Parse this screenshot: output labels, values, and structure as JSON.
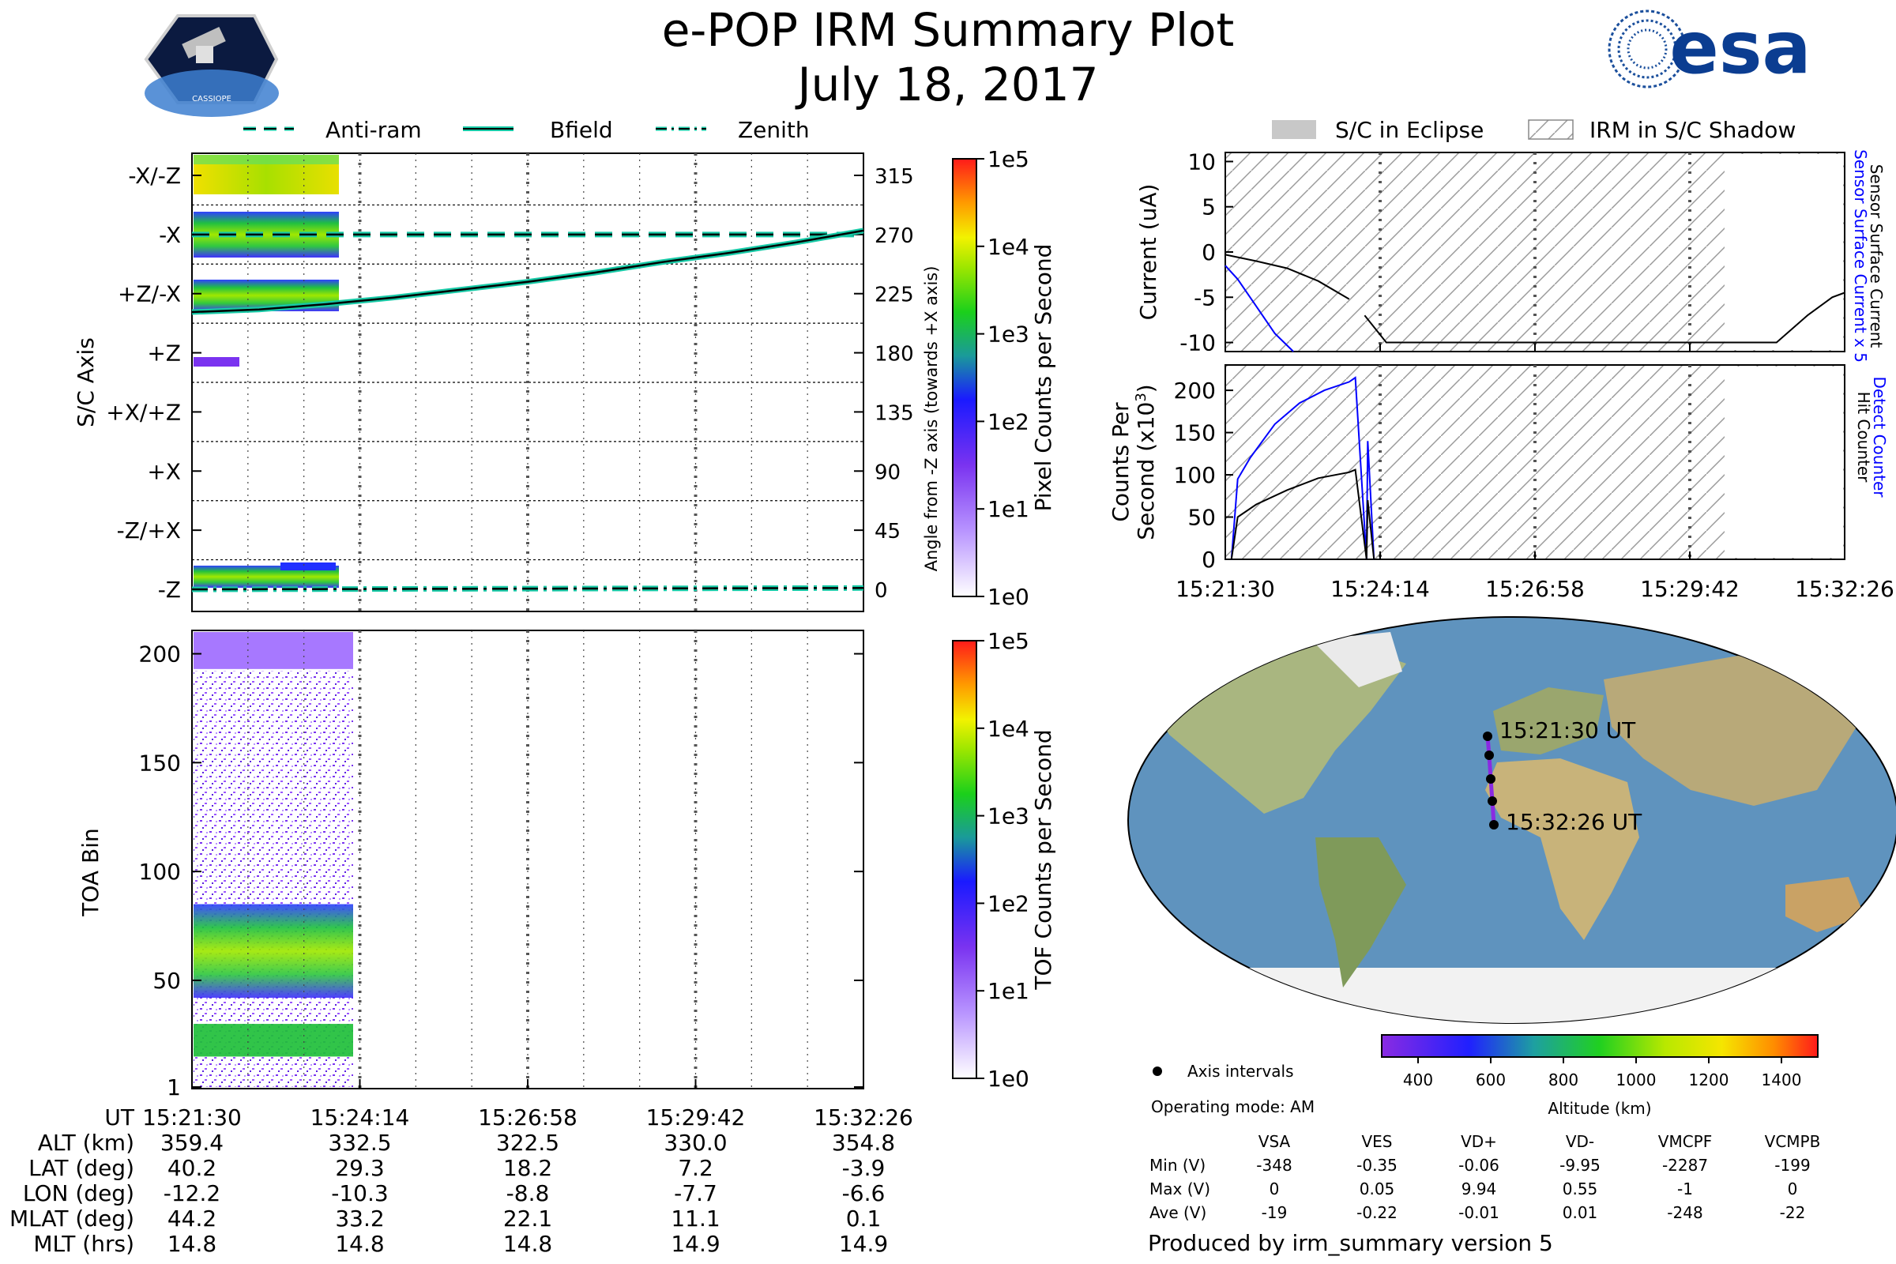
{
  "title": "e-POP IRM Summary Plot",
  "date": "July 18, 2017",
  "esa_logo_text": "esa",
  "mission_badge_text": "CASSIOPE",
  "colors": {
    "antiram": "#17c9a6",
    "bfield": "#17c9a6",
    "zenith": "#17c9a6",
    "sensor_x5": "#0000ff",
    "detect": "#0000ff",
    "eclipse_gray": "#c8c8c8",
    "track": "#8a2be2"
  },
  "top_legend": {
    "items": [
      "Anti-ram",
      "Bfield",
      "Zenith"
    ]
  },
  "right_legend": {
    "items": [
      "S/C in Eclipse",
      "IRM in S/C Shadow"
    ]
  },
  "time_ticks": [
    "15:21:30",
    "15:24:14",
    "15:26:58",
    "15:29:42",
    "15:32:26"
  ],
  "chart_data": [
    {
      "id": "axis_panel",
      "type": "heatmap",
      "ylabel": "S/C Axis",
      "categories": [
        "-X/-Z",
        "-X",
        "+Z/-X",
        "+Z",
        "+X/+Z",
        "+X",
        "-Z/+X",
        "-Z"
      ],
      "right_ticks": [
        315,
        270,
        225,
        180,
        135,
        90,
        45,
        0
      ],
      "right_label": "Angle from -Z axis (towards +X axis)",
      "colorbar_label": "Pixel Counts per Second",
      "colorbar_ticks": [
        "1e5",
        "1e4",
        "1e3",
        "1e2",
        "1e1",
        "1e0"
      ],
      "series": [
        {
          "name": "Anti-ram",
          "style": "dashed",
          "x": [
            0,
            1
          ],
          "y": [
            270,
            270
          ]
        },
        {
          "name": "Bfield",
          "style": "solid",
          "x": [
            0,
            0.1,
            0.2,
            0.3,
            0.4,
            0.5,
            0.6,
            0.7,
            0.8,
            0.9,
            1.0
          ],
          "y": [
            211,
            213,
            217,
            222,
            228,
            234,
            241,
            249,
            256,
            264,
            273
          ]
        },
        {
          "name": "Zenith",
          "style": "dashdot",
          "x": [
            0,
            1
          ],
          "y": [
            0,
            1
          ]
        }
      ],
      "data_extent_fraction": 0.24
    },
    {
      "id": "toa_panel",
      "type": "heatmap",
      "ylabel": "TOA Bin",
      "yticks": [
        1,
        50,
        100,
        150,
        200
      ],
      "ylim": [
        1,
        210
      ],
      "colorbar_label": "TOF Counts per Second",
      "colorbar_ticks": [
        "1e5",
        "1e4",
        "1e3",
        "1e2",
        "1e1",
        "1e0"
      ],
      "bands": [
        {
          "from": 193,
          "to": 210,
          "level": "1e1"
        },
        {
          "from": 42,
          "to": 85,
          "level": "1e2-1e3"
        },
        {
          "from": 15,
          "to": 30,
          "level": "1e2"
        }
      ]
    },
    {
      "id": "current_panel",
      "type": "line",
      "ylabel": "Current (uA)",
      "right_label_blue": "Sensor Surface Current x 5",
      "right_label_black": "Sensor Surface Current",
      "yticks": [
        10,
        5,
        0,
        -5,
        -10
      ],
      "ylim": [
        -11,
        11
      ],
      "series": [
        {
          "name": "Sensor Surface Current",
          "color": "black",
          "x": [
            0,
            0.05,
            0.1,
            0.15,
            0.2
          ],
          "y": [
            -0.3,
            -1.0,
            -1.8,
            -3.2,
            -5.2
          ]
        },
        {
          "name": "Sensor Surface Current (b)",
          "color": "black",
          "x": [
            0.225,
            0.26,
            0.89,
            0.94,
            0.98,
            1.0
          ],
          "y": [
            -7,
            -10,
            -10,
            -7,
            -5,
            -4.5
          ]
        },
        {
          "name": "Sensor Surface Current x 5",
          "color": "blue",
          "x": [
            0,
            0.02,
            0.05,
            0.08,
            0.11
          ],
          "y": [
            -1.5,
            -3,
            -6,
            -9,
            -11
          ]
        }
      ],
      "xtick_labels_shown": false
    },
    {
      "id": "counts_panel",
      "type": "line",
      "ylabel_line1": "Counts Per",
      "ylabel_line2": "Second (x10",
      "ylabel_sup": "3",
      "right_label_blue": "Detect Counter",
      "right_label_black": "Hit Counter",
      "yticks": [
        200,
        150,
        100,
        50,
        0
      ],
      "ylim": [
        0,
        230
      ],
      "series": [
        {
          "name": "Detect Counter",
          "color": "blue",
          "x": [
            0,
            0.01,
            0.02,
            0.04,
            0.08,
            0.12,
            0.16,
            0.2,
            0.21,
            0.228,
            0.23,
            0.24,
            1.0
          ],
          "y": [
            0,
            0,
            95,
            120,
            160,
            185,
            200,
            210,
            215,
            0,
            140,
            0,
            0
          ]
        },
        {
          "name": "Hit Counter",
          "color": "black",
          "x": [
            0,
            0.01,
            0.02,
            0.05,
            0.1,
            0.15,
            0.2,
            0.21,
            0.228,
            0.23,
            0.24,
            1.0
          ],
          "y": [
            0,
            0,
            50,
            65,
            82,
            96,
            103,
            106,
            0,
            70,
            0,
            0
          ]
        }
      ]
    },
    {
      "id": "altitude_colorbar",
      "type": "heatmap",
      "label": "Altitude (km)",
      "ticks": [
        400,
        600,
        800,
        1000,
        1200,
        1400
      ],
      "range": [
        300,
        1500
      ]
    }
  ],
  "map": {
    "start_label": "15:21:30 UT",
    "end_label": "15:32:26 UT",
    "track_points": [
      [
        -12.2,
        40.2
      ],
      [
        -10.3,
        29.3
      ],
      [
        -8.8,
        18.2
      ],
      [
        -7.7,
        7.2
      ],
      [
        -6.6,
        -3.9
      ]
    ]
  },
  "axis_intervals_label": "Axis intervals",
  "operating_mode": "Operating mode: AM",
  "position_table": {
    "rows": [
      {
        "label": "ALT (km)",
        "values": [
          "359.4",
          "332.5",
          "322.5",
          "330.0",
          "354.8"
        ]
      },
      {
        "label": "LAT (deg)",
        "values": [
          "40.2",
          "29.3",
          "18.2",
          "7.2",
          "-3.9"
        ]
      },
      {
        "label": "LON (deg)",
        "values": [
          "-12.2",
          "-10.3",
          "-8.8",
          "-7.7",
          "-6.6"
        ]
      },
      {
        "label": "MLAT (deg)",
        "values": [
          "44.2",
          "33.2",
          "22.1",
          "11.1",
          "0.1"
        ]
      },
      {
        "label": "MLT (hrs)",
        "values": [
          "14.8",
          "14.8",
          "14.8",
          "14.9",
          "14.9"
        ]
      }
    ],
    "ut_label": "UT"
  },
  "voltage_table": {
    "columns": [
      "VSA",
      "VES",
      "VD+",
      "VD-",
      "VMCPF",
      "VCMPB"
    ],
    "rows": [
      {
        "label": "Min (V)",
        "values": [
          "-348",
          "-0.35",
          "-0.06",
          "-9.95",
          "-2287",
          "-199"
        ]
      },
      {
        "label": "Max (V)",
        "values": [
          "0",
          "0.05",
          "9.94",
          "0.55",
          "-1",
          "0"
        ]
      },
      {
        "label": "Ave (V)",
        "values": [
          "-19",
          "-0.22",
          "-0.01",
          "0.01",
          "-248",
          "-22"
        ]
      }
    ]
  },
  "footer": "Produced by irm_summary version 5"
}
